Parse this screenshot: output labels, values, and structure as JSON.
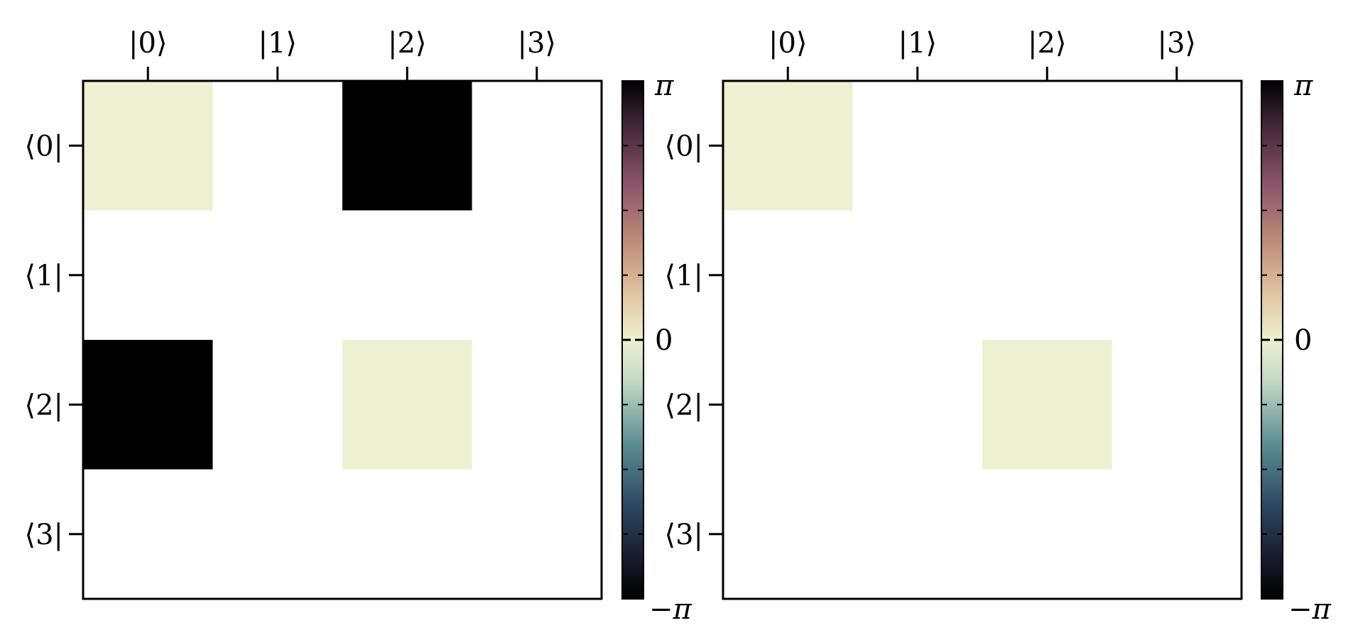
{
  "figure": {
    "colorbar_ticks": {
      "max": "π",
      "mid": "0",
      "min": "−π"
    }
  },
  "chart_data": [
    {
      "type": "heatmap",
      "title": "",
      "xlabel": "",
      "ylabel": "",
      "x_tick_labels": [
        "|0⟩",
        "|1⟩",
        "|2⟩",
        "|3⟩"
      ],
      "y_tick_labels": [
        "⟨0|",
        "⟨1|",
        "⟨2|",
        "⟨3|"
      ],
      "value_range": [
        -3.14159,
        3.14159
      ],
      "colorbar": {
        "ticks": [
          "π",
          "0",
          "−π"
        ],
        "minor_ticks": true
      },
      "colormap_description": "cyclic: -π black, navy, teal, pale cream at 0, tan, mauve, black at π",
      "cell_note": "cells with no value are blank (white)",
      "cells": [
        {
          "row": 0,
          "col": 0,
          "phase": 0
        },
        {
          "row": 0,
          "col": 2,
          "phase": 3.14159
        },
        {
          "row": 2,
          "col": 0,
          "phase": 3.14159
        },
        {
          "row": 2,
          "col": 2,
          "phase": 0
        }
      ]
    },
    {
      "type": "heatmap",
      "title": "",
      "xlabel": "",
      "ylabel": "",
      "x_tick_labels": [
        "|0⟩",
        "|1⟩",
        "|2⟩",
        "|3⟩"
      ],
      "y_tick_labels": [
        "⟨0|",
        "⟨1|",
        "⟨2|",
        "⟨3|"
      ],
      "value_range": [
        -3.14159,
        3.14159
      ],
      "colorbar": {
        "ticks": [
          "π",
          "0",
          "−π"
        ],
        "minor_ticks": true
      },
      "colormap_description": "cyclic: -π black, navy, teal, pale cream at 0, tan, mauve, black at π",
      "cell_note": "cells with no value are blank (white)",
      "cells": [
        {
          "row": 0,
          "col": 0,
          "phase": 0
        },
        {
          "row": 2,
          "col": 2,
          "phase": 0
        }
      ]
    }
  ],
  "colors": {
    "background": "#ffffff",
    "axis": "#000000",
    "colormap_stops": [
      {
        "pos": 0.0,
        "color": "#000000"
      },
      {
        "pos": 0.08,
        "color": "#181c2c"
      },
      {
        "pos": 0.18,
        "color": "#2e4763"
      },
      {
        "pos": 0.3,
        "color": "#5d8e92"
      },
      {
        "pos": 0.42,
        "color": "#c3d8c4"
      },
      {
        "pos": 0.5,
        "color": "#edf1d2"
      },
      {
        "pos": 0.58,
        "color": "#e3c9a4"
      },
      {
        "pos": 0.68,
        "color": "#c2927b"
      },
      {
        "pos": 0.8,
        "color": "#8c5469"
      },
      {
        "pos": 0.92,
        "color": "#3d2435"
      },
      {
        "pos": 1.0,
        "color": "#000000"
      }
    ]
  }
}
